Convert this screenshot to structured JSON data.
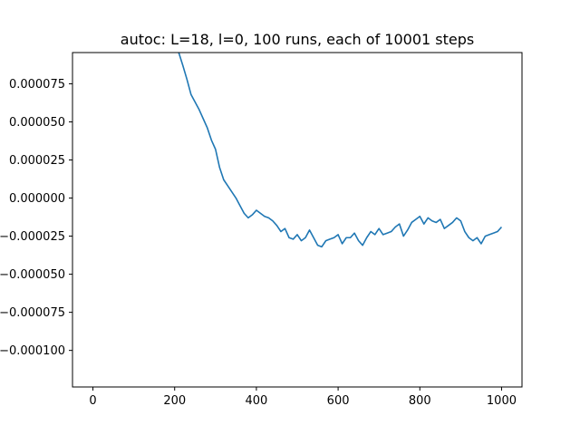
{
  "chart_data": {
    "type": "line",
    "title": "autoc: L=18, l=0, 100 runs, each of 10001 steps",
    "xlabel": "",
    "ylabel": "",
    "xlim": [
      -50,
      1050
    ],
    "ylim": [
      -0.000124,
      9.55e-05
    ],
    "xticks": [
      0,
      200,
      400,
      600,
      800,
      1000
    ],
    "xtick_labels": [
      "0",
      "200",
      "400",
      "600",
      "800",
      "1000"
    ],
    "yticks": [
      7.5e-05,
      5e-05,
      2.5e-05,
      0.0,
      -2.5e-05,
      -5e-05,
      -7.5e-05,
      -0.0001
    ],
    "ytick_labels": [
      "0.000075",
      "0.000050",
      "0.000025",
      "0.000000",
      "−0.000025",
      "−0.000050",
      "−0.000075",
      "−0.000100"
    ],
    "grid": false,
    "line_color": "#1f77b4",
    "series": [
      {
        "name": "",
        "x": [
          210,
          220,
          230,
          240,
          250,
          260,
          270,
          280,
          290,
          300,
          310,
          320,
          330,
          340,
          350,
          360,
          370,
          380,
          390,
          400,
          410,
          420,
          430,
          440,
          450,
          460,
          470,
          480,
          490,
          500,
          510,
          520,
          530,
          540,
          550,
          560,
          570,
          580,
          590,
          600,
          610,
          620,
          630,
          640,
          650,
          660,
          670,
          680,
          690,
          700,
          710,
          720,
          730,
          740,
          750,
          760,
          770,
          780,
          790,
          800,
          810,
          820,
          830,
          840,
          850,
          860,
          870,
          880,
          890,
          900,
          910,
          920,
          930,
          940,
          950,
          960,
          970,
          980,
          990,
          1000
        ],
        "y": [
          9.55e-05,
          8.7e-05,
          7.8e-05,
          6.8e-05,
          6.3e-05,
          5.8e-05,
          5.2e-05,
          4.6e-05,
          3.8e-05,
          3.2e-05,
          2e-05,
          1.2e-05,
          8e-06,
          4e-06,
          0.0,
          -5e-06,
          -1e-05,
          -1.3e-05,
          -1.1e-05,
          -8e-06,
          -1e-05,
          -1.2e-05,
          -1.3e-05,
          -1.5e-05,
          -1.8e-05,
          -2.2e-05,
          -2e-05,
          -2.6e-05,
          -2.7e-05,
          -2.4e-05,
          -2.8e-05,
          -2.6e-05,
          -2.1e-05,
          -2.6e-05,
          -3.1e-05,
          -3.2e-05,
          -2.8e-05,
          -2.7e-05,
          -2.6e-05,
          -2.4e-05,
          -3e-05,
          -2.6e-05,
          -2.6e-05,
          -2.3e-05,
          -2.8e-05,
          -3.1e-05,
          -2.6e-05,
          -2.2e-05,
          -2.4e-05,
          -2e-05,
          -2.4e-05,
          -2.3e-05,
          -2.2e-05,
          -1.9e-05,
          -1.7e-05,
          -2.5e-05,
          -2.1e-05,
          -1.6e-05,
          -1.4e-05,
          -1.2e-05,
          -1.7e-05,
          -1.3e-05,
          -1.5e-05,
          -1.6e-05,
          -1.4e-05,
          -2e-05,
          -1.8e-05,
          -1.6e-05,
          -1.3e-05,
          -1.5e-05,
          -2.2e-05,
          -2.6e-05,
          -2.8e-05,
          -2.6e-05,
          -3e-05,
          -2.5e-05,
          -2.4e-05,
          -2.3e-05,
          -2.2e-05,
          -1.9e-05
        ]
      }
    ]
  }
}
